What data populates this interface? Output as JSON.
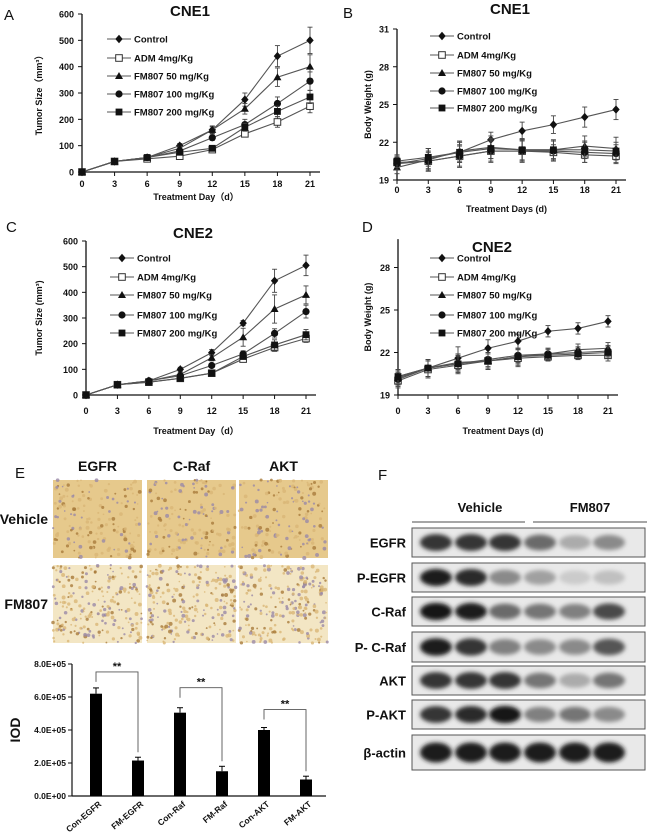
{
  "panel_labels": {
    "A": "A",
    "B": "B",
    "C": "C",
    "D": "D",
    "E": "E",
    "F": "F"
  },
  "legend_labels": [
    "Control",
    "ADM 4mg/Kg",
    "FM807 50 mg/Kg",
    "FM807 100 mg/Kg",
    "FM807 200 mg/Kg"
  ],
  "chart_data": [
    {
      "id": "A",
      "type": "line",
      "title": "CNE1",
      "xlabel": "Treatment Day（d）",
      "ylabel": "Tumor Size（mm³）",
      "x": [
        0,
        3,
        6,
        9,
        12,
        15,
        18,
        21
      ],
      "xticks": [
        "0",
        "3",
        "6",
        "9",
        "12",
        "15",
        "18",
        "21"
      ],
      "ylim": [
        0,
        600
      ],
      "yticks": [
        "0",
        "100",
        "200",
        "300",
        "400",
        "500",
        "600"
      ],
      "legend": "top-left",
      "series": [
        {
          "name": "Control",
          "marker": "diamond",
          "values": [
            0,
            40,
            55,
            100,
            160,
            275,
            440,
            500
          ],
          "error": [
            0,
            5,
            5,
            8,
            15,
            25,
            40,
            50
          ]
        },
        {
          "name": "ADM 4mg/Kg",
          "marker": "open-square",
          "values": [
            0,
            40,
            50,
            60,
            85,
            145,
            190,
            250
          ],
          "error": [
            0,
            5,
            5,
            6,
            8,
            12,
            20,
            25
          ]
        },
        {
          "name": "FM807 50 mg/Kg",
          "marker": "triangle",
          "values": [
            0,
            40,
            55,
            90,
            160,
            240,
            360,
            400
          ],
          "error": [
            0,
            5,
            5,
            8,
            12,
            20,
            35,
            45
          ]
        },
        {
          "name": "FM807 100 mg/Kg",
          "marker": "circle",
          "values": [
            0,
            40,
            55,
            80,
            130,
            180,
            260,
            345
          ],
          "error": [
            0,
            5,
            5,
            8,
            10,
            20,
            25,
            35
          ]
        },
        {
          "name": "FM807 200 mg/Kg",
          "marker": "square",
          "values": [
            0,
            40,
            55,
            75,
            90,
            170,
            230,
            285
          ],
          "error": [
            0,
            5,
            5,
            6,
            8,
            15,
            20,
            25
          ]
        }
      ]
    },
    {
      "id": "B",
      "type": "line",
      "title": "CNE1",
      "xlabel": "Treatment Days (d)",
      "ylabel": "Body Weight (g)",
      "x": [
        0,
        3,
        6,
        9,
        12,
        15,
        18,
        21
      ],
      "xticks": [
        "0",
        "3",
        "6",
        "9",
        "12",
        "15",
        "18",
        "21"
      ],
      "ylim": [
        19,
        31
      ],
      "yticks": [
        "19",
        "22",
        "25",
        "28",
        "31"
      ],
      "legend": "top-left",
      "series": [
        {
          "name": "Control",
          "marker": "diamond",
          "values": [
            20.3,
            20.7,
            21.2,
            22.2,
            22.9,
            23.4,
            24.0,
            24.6
          ],
          "error": [
            0.5,
            0.8,
            0.8,
            0.6,
            0.7,
            0.7,
            0.8,
            0.8
          ]
        },
        {
          "name": "ADM 4mg/Kg",
          "marker": "open-square",
          "values": [
            20.4,
            20.5,
            20.9,
            21.3,
            21.3,
            21.2,
            21.0,
            20.9
          ],
          "error": [
            0.5,
            0.8,
            0.8,
            0.8,
            0.8,
            0.6,
            0.6,
            0.6
          ]
        },
        {
          "name": "FM807 50 mg/Kg",
          "marker": "triangle",
          "values": [
            20.0,
            20.6,
            21.3,
            21.6,
            21.4,
            21.4,
            21.7,
            21.5
          ],
          "error": [
            0.5,
            0.9,
            0.8,
            0.9,
            0.9,
            0.8,
            0.8,
            0.9
          ]
        },
        {
          "name": "FM807 100 mg/Kg",
          "marker": "circle",
          "values": [
            20.3,
            20.5,
            20.9,
            21.3,
            21.3,
            21.3,
            21.2,
            21.1
          ],
          "error": [
            0.5,
            0.7,
            0.9,
            0.9,
            0.9,
            0.8,
            0.8,
            0.7
          ]
        },
        {
          "name": "FM807 200 mg/Kg",
          "marker": "square",
          "values": [
            20.5,
            20.8,
            21.2,
            21.5,
            21.4,
            21.4,
            21.4,
            21.3
          ],
          "error": [
            0.5,
            0.7,
            0.8,
            0.8,
            0.8,
            0.7,
            0.7,
            0.7
          ]
        }
      ]
    },
    {
      "id": "C",
      "type": "line",
      "title": "CNE2",
      "xlabel": "Treatment Day（d）",
      "ylabel": "Tumor Size (mm³)",
      "x": [
        0,
        3,
        6,
        9,
        12,
        15,
        18,
        21
      ],
      "xticks": [
        "0",
        "3",
        "6",
        "9",
        "12",
        "15",
        "18",
        "21"
      ],
      "ylim": [
        0,
        600
      ],
      "yticks": [
        "0",
        "100",
        "200",
        "300",
        "400",
        "500",
        "600"
      ],
      "legend": "top-left",
      "series": [
        {
          "name": "Control",
          "marker": "diamond",
          "values": [
            0,
            40,
            55,
            100,
            165,
            280,
            445,
            505
          ],
          "error": [
            0,
            5,
            5,
            8,
            12,
            10,
            45,
            40
          ]
        },
        {
          "name": "ADM 4mg/Kg",
          "marker": "open-square",
          "values": [
            0,
            40,
            50,
            65,
            85,
            140,
            185,
            220
          ],
          "error": [
            0,
            5,
            5,
            6,
            6,
            10,
            15,
            15
          ]
        },
        {
          "name": "FM807 50 mg/Kg",
          "marker": "triangle",
          "values": [
            0,
            40,
            55,
            80,
            145,
            225,
            335,
            390
          ],
          "error": [
            0,
            5,
            5,
            8,
            12,
            35,
            55,
            35
          ]
        },
        {
          "name": "FM807 100 mg/Kg",
          "marker": "circle",
          "values": [
            0,
            40,
            55,
            75,
            115,
            160,
            240,
            325
          ],
          "error": [
            0,
            5,
            5,
            6,
            8,
            12,
            18,
            25
          ]
        },
        {
          "name": "FM807 200 mg/Kg",
          "marker": "square",
          "values": [
            0,
            40,
            50,
            65,
            85,
            150,
            195,
            235
          ],
          "error": [
            0,
            5,
            5,
            6,
            6,
            10,
            20,
            20
          ]
        }
      ]
    },
    {
      "id": "D",
      "type": "line",
      "title": "CNE2",
      "xlabel": "Treatment Days (d)",
      "ylabel": "Body Weight (g)",
      "x": [
        0,
        3,
        6,
        9,
        12,
        15,
        18,
        21
      ],
      "xticks": [
        "0",
        "3",
        "6",
        "9",
        "12",
        "15",
        "18",
        "21"
      ],
      "ylim": [
        19,
        30
      ],
      "yticks": [
        "19",
        "22",
        "25",
        "28"
      ],
      "legend": "top-left",
      "series": [
        {
          "name": "Control",
          "marker": "diamond",
          "values": [
            20.3,
            20.9,
            21.6,
            22.3,
            22.8,
            23.5,
            23.7,
            24.2
          ],
          "error": [
            0.5,
            0.6,
            0.8,
            0.6,
            0.5,
            0.4,
            0.4,
            0.4
          ]
        },
        {
          "name": "ADM 4mg/Kg",
          "marker": "open-square",
          "values": [
            20.0,
            20.8,
            21.1,
            21.4,
            21.6,
            21.7,
            21.8,
            21.8
          ],
          "error": [
            0.5,
            0.6,
            0.6,
            0.6,
            0.6,
            0.3,
            0.3,
            0.4
          ]
        },
        {
          "name": "FM807 50 mg/Kg",
          "marker": "triangle",
          "values": [
            20.2,
            20.9,
            21.3,
            21.4,
            21.7,
            21.9,
            22.2,
            22.3
          ],
          "error": [
            0.5,
            0.6,
            0.6,
            0.6,
            0.6,
            0.4,
            0.4,
            0.4
          ]
        },
        {
          "name": "FM807 100 mg/Kg",
          "marker": "circle",
          "values": [
            20.1,
            20.9,
            21.2,
            21.5,
            21.8,
            21.9,
            22.0,
            22.1
          ],
          "error": [
            0.5,
            0.6,
            0.6,
            0.5,
            0.5,
            0.4,
            0.4,
            0.4
          ]
        },
        {
          "name": "FM807 200 mg/Kg",
          "marker": "square",
          "values": [
            20.3,
            20.9,
            21.2,
            21.4,
            21.7,
            21.8,
            21.9,
            22.0
          ],
          "error": [
            0.5,
            0.6,
            0.6,
            0.5,
            0.5,
            0.4,
            0.4,
            0.4
          ]
        }
      ]
    },
    {
      "id": "E-bar",
      "type": "bar",
      "title": "",
      "xlabel": "",
      "ylabel": "IOD",
      "categories": [
        "Con-EGFR",
        "FM-EGFR",
        "Con-Raf",
        "FM-Raf",
        "Con-AKT",
        "FM-AKT"
      ],
      "values": [
        620000,
        215000,
        505000,
        150000,
        400000,
        100000
      ],
      "error": [
        35000,
        20000,
        30000,
        30000,
        15000,
        20000
      ],
      "ylim": [
        0,
        800000
      ],
      "yticks": [
        "0.0E+00",
        "2.0E+05",
        "4.0E+05",
        "6.0E+05",
        "8.0E+05"
      ],
      "significance": [
        {
          "pair": [
            0,
            1
          ],
          "label": "**"
        },
        {
          "pair": [
            2,
            3
          ],
          "label": "**"
        },
        {
          "pair": [
            4,
            5
          ],
          "label": "**"
        }
      ]
    }
  ],
  "ihc": {
    "columns": [
      "EGFR",
      "C-Raf",
      "AKT"
    ],
    "rows": [
      "Vehicle",
      "FM807"
    ],
    "stain_color": "#d9b777",
    "background_color": "#f3e6c4"
  },
  "western": {
    "groups": [
      "Vehicle",
      "FM807"
    ],
    "rows": [
      {
        "label": "EGFR",
        "intensity": [
          0.85,
          0.85,
          0.85,
          0.6,
          0.3,
          0.45
        ]
      },
      {
        "label": "P-EGFR",
        "intensity": [
          0.95,
          0.9,
          0.45,
          0.35,
          0.15,
          0.2
        ]
      },
      {
        "label": "C-Raf",
        "intensity": [
          1.0,
          0.95,
          0.6,
          0.55,
          0.5,
          0.75
        ]
      },
      {
        "label": "P- C-Raf",
        "intensity": [
          0.95,
          0.85,
          0.5,
          0.45,
          0.45,
          0.7
        ]
      },
      {
        "label": "AKT",
        "intensity": [
          0.85,
          0.85,
          0.85,
          0.55,
          0.3,
          0.55
        ]
      },
      {
        "label": "P-AKT",
        "intensity": [
          0.85,
          0.9,
          1.0,
          0.5,
          0.55,
          0.45
        ]
      },
      {
        "label": "β-actin",
        "intensity": [
          0.95,
          0.95,
          0.95,
          0.95,
          0.95,
          0.95
        ]
      }
    ]
  }
}
